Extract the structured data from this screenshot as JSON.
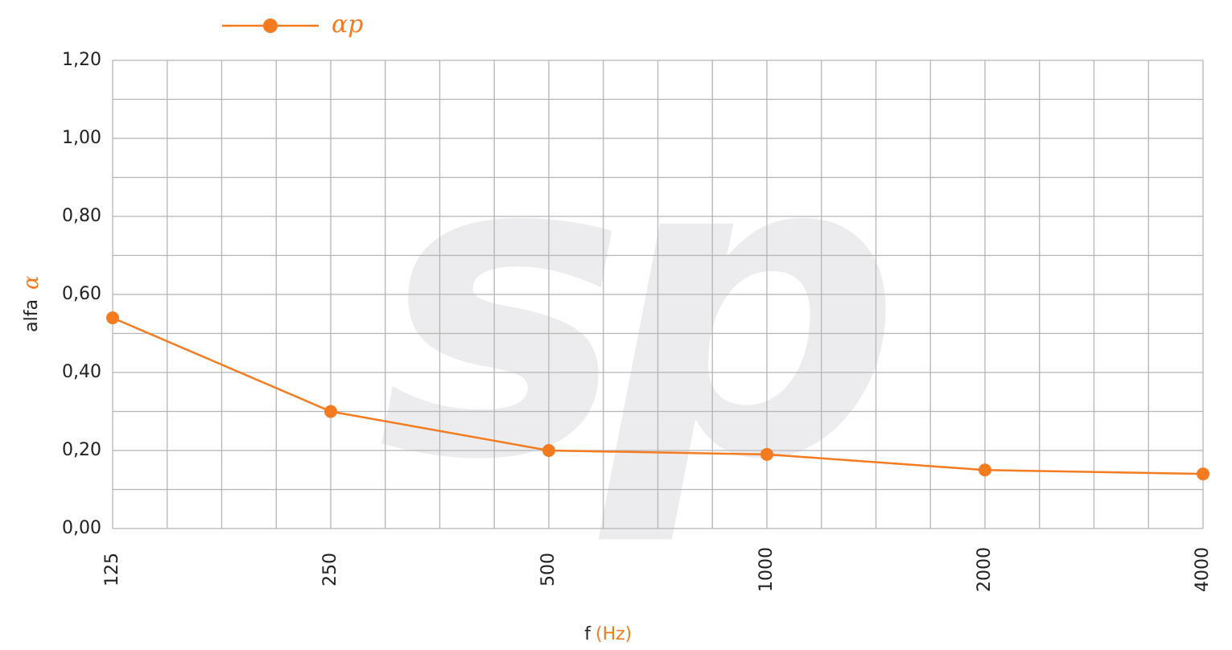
{
  "chart_data": {
    "type": "line",
    "watermark": "sp",
    "x_label": "f",
    "x_label_unit": "(Hz)",
    "y_label": "alfa",
    "y_label_symbol": "α",
    "categories": [
      "125",
      "250",
      "500",
      "1000",
      "2000",
      "4000"
    ],
    "series": [
      {
        "name": "αp",
        "color": "#f47b20",
        "values": [
          0.54,
          0.3,
          0.2,
          0.19,
          0.15,
          0.14
        ]
      }
    ],
    "ylim": [
      0,
      1.2
    ],
    "yticks": [
      {
        "value": 0,
        "label": "0,00"
      },
      {
        "value": 0.2,
        "label": "0,20"
      },
      {
        "value": 0.4,
        "label": "0,40"
      },
      {
        "value": 0.6,
        "label": "0,60"
      },
      {
        "value": 0.8,
        "label": "0,80"
      },
      {
        "value": 1.0,
        "label": "1,00"
      },
      {
        "value": 1.2,
        "label": "1,20"
      }
    ],
    "grid": true
  }
}
